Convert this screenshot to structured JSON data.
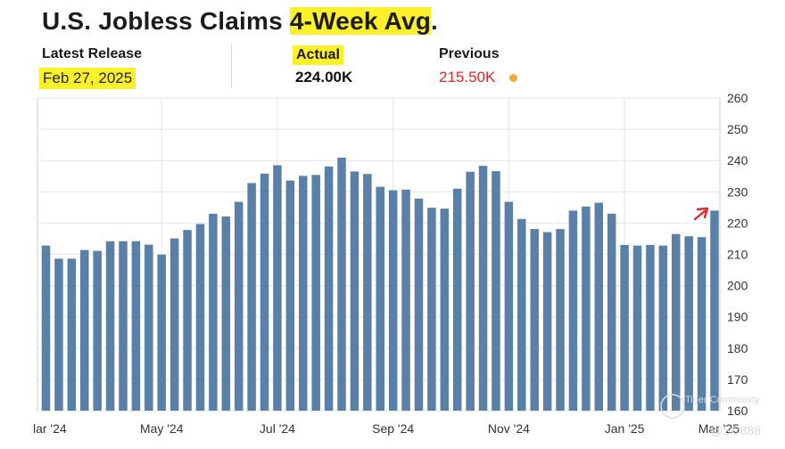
{
  "header": {
    "title_prefix": "U.S. Jobless Claims ",
    "title_highlight": "4-Week Avg",
    "title_suffix": "."
  },
  "release": {
    "label": "Latest Release",
    "date": "Feb 27, 2025"
  },
  "actual": {
    "label": "Actual",
    "value": "224.00K"
  },
  "previous": {
    "label": "Previous",
    "value": "215.50K"
  },
  "watermark": {
    "line1": "Tiger Community",
    "line2": "@SC888"
  },
  "colors": {
    "bar": "#5b80a8",
    "highlight": "#fbf02a",
    "previous_value": "#e0262b",
    "previous_dot": "#f2a93b",
    "arrow": "#e0262b",
    "grid": "#e4e4e4"
  },
  "annotations": {
    "arrow": "red arrow pointing to latest bar"
  },
  "chart_data": {
    "type": "bar",
    "title": "U.S. Jobless Claims 4-Week Avg.",
    "xlabel": "",
    "ylabel": "",
    "ylim": [
      160,
      260
    ],
    "yticks": [
      160,
      170,
      180,
      190,
      200,
      210,
      220,
      230,
      240,
      250,
      260
    ],
    "x_tick_labels": [
      "lar '24",
      "May '24",
      "Jul '24",
      "Sep '24",
      "Nov '24",
      "Jan '25",
      "Mar '25"
    ],
    "y_axis_position": "right",
    "grid": true,
    "legend": "none",
    "series": [
      {
        "values": [
          212.8,
          208.6,
          208.6,
          211.4,
          211.1,
          214.2,
          214.2,
          214.2,
          213.1,
          209.9,
          215.1,
          217.8,
          219.7,
          223.0,
          222.1,
          226.8,
          232.8,
          235.8,
          238.5,
          233.6,
          235.1,
          235.4,
          238.1,
          240.9,
          236.5,
          235.7,
          231.6,
          230.5,
          230.7,
          227.8,
          224.9,
          224.6,
          231.0,
          236.4,
          238.3,
          236.6,
          226.8,
          221.3,
          218.1,
          217.1,
          218.1,
          224.0,
          225.3,
          226.5,
          223.0,
          213.0,
          212.8,
          213.0,
          212.8,
          216.5,
          215.8,
          215.5,
          224.0
        ]
      }
    ]
  }
}
